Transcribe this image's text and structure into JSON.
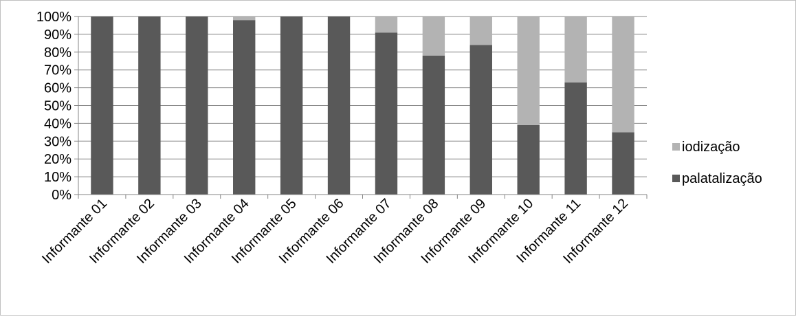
{
  "chart_data": {
    "type": "bar",
    "stacked": true,
    "percent_stacked": true,
    "title": "",
    "xlabel": "",
    "ylabel": "",
    "ylim": [
      0,
      100
    ],
    "y_ticks": [
      "0%",
      "10%",
      "20%",
      "30%",
      "40%",
      "50%",
      "60%",
      "70%",
      "80%",
      "90%",
      "100%"
    ],
    "grid": true,
    "legend_position": "right",
    "categories": [
      "Informante 01",
      "Informante 02",
      "Informante 03",
      "Informante 04",
      "Informante 05",
      "Informante 06",
      "Informante 07",
      "Informante 08",
      "Informante 09",
      "Informante 10",
      "Informante 11",
      "Informante 12"
    ],
    "series": [
      {
        "name": "palatalização",
        "color": "#595959",
        "values": [
          100,
          100,
          100,
          98,
          100,
          100,
          91,
          78,
          84,
          39,
          63,
          35
        ]
      },
      {
        "name": "iodização",
        "color": "#b3b3b3",
        "values": [
          0,
          0,
          0,
          2,
          0,
          0,
          9,
          22,
          16,
          61,
          37,
          65
        ]
      }
    ],
    "legend_order": [
      "iodização",
      "palatalização"
    ]
  }
}
